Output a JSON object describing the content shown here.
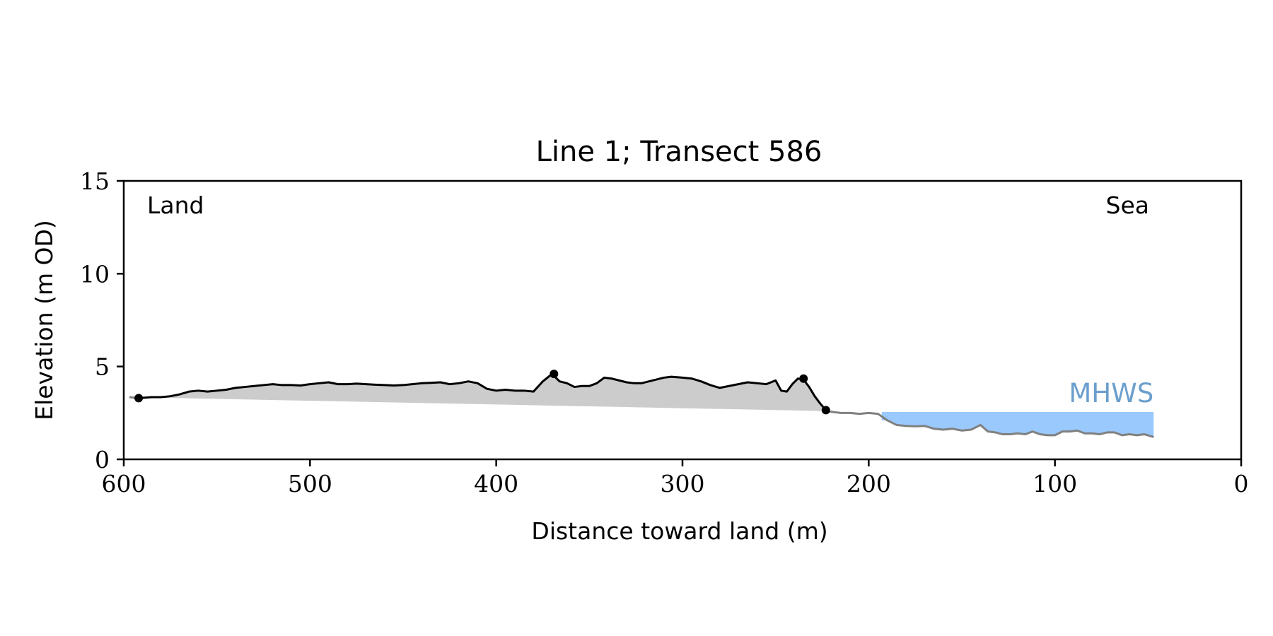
{
  "chart_data": {
    "type": "area",
    "title": "Line 1; Transect 586",
    "xlabel": "Distance toward land (m)",
    "ylabel": "Elevation (m OD)",
    "xlim": [
      600,
      0
    ],
    "ylim": [
      0,
      15
    ],
    "x_ticks": [
      600,
      500,
      400,
      300,
      200,
      100,
      0
    ],
    "y_ticks": [
      0,
      5,
      10,
      15
    ],
    "grid": false,
    "annotations": [
      {
        "text": "Land",
        "position": "top-left"
      },
      {
        "text": "Sea",
        "position": "top-right"
      }
    ],
    "mhws": {
      "label": "MHWS",
      "level": 2.55,
      "x_start": 193,
      "x_end": 47,
      "color": "#99c9fd",
      "label_color": "#6b9fcd"
    },
    "baseline": {
      "x": [
        597,
        223
      ],
      "y": [
        3.35,
        2.6
      ]
    },
    "land_profile": {
      "color": "#000000",
      "fill_color": "#cccccc",
      "x": [
        592,
        585,
        580,
        575,
        570,
        565,
        560,
        555,
        550,
        545,
        540,
        535,
        530,
        525,
        520,
        515,
        510,
        505,
        500,
        495,
        490,
        485,
        480,
        475,
        470,
        465,
        460,
        455,
        450,
        445,
        440,
        435,
        430,
        425,
        420,
        415,
        410,
        405,
        400,
        395,
        390,
        385,
        380,
        375,
        370,
        366,
        362,
        358,
        354,
        350,
        346,
        342,
        338,
        334,
        330,
        326,
        322,
        318,
        314,
        310,
        306,
        300,
        295,
        290,
        285,
        280,
        275,
        270,
        265,
        260,
        255,
        250,
        247,
        244,
        241,
        238,
        235,
        232,
        229,
        226,
        223
      ],
      "y": [
        3.3,
        3.35,
        3.35,
        3.4,
        3.5,
        3.65,
        3.7,
        3.65,
        3.7,
        3.75,
        3.85,
        3.9,
        3.95,
        4.0,
        4.05,
        4.0,
        4.0,
        3.98,
        4.05,
        4.1,
        4.15,
        4.05,
        4.05,
        4.08,
        4.05,
        4.02,
        4.0,
        3.98,
        4.0,
        4.05,
        4.1,
        4.12,
        4.15,
        4.05,
        4.1,
        4.2,
        4.1,
        3.8,
        3.7,
        3.75,
        3.7,
        3.7,
        3.65,
        4.2,
        4.6,
        4.2,
        4.1,
        3.9,
        3.95,
        3.95,
        4.1,
        4.4,
        4.35,
        4.25,
        4.15,
        4.1,
        4.1,
        4.2,
        4.3,
        4.4,
        4.45,
        4.4,
        4.35,
        4.2,
        4.0,
        3.85,
        3.95,
        4.05,
        4.15,
        4.1,
        4.05,
        4.25,
        3.7,
        3.65,
        4.05,
        4.35,
        4.3,
        3.9,
        3.4,
        3.0,
        2.65
      ],
      "markers": [
        {
          "x": 592,
          "y": 3.3
        },
        {
          "x": 369,
          "y": 4.6
        },
        {
          "x": 235,
          "y": 4.35
        },
        {
          "x": 223,
          "y": 2.65
        }
      ]
    },
    "sea_profile": {
      "color": "#808080",
      "x": [
        223,
        215,
        210,
        205,
        200,
        195,
        190,
        185,
        180,
        175,
        170,
        165,
        160,
        155,
        150,
        145,
        140,
        136,
        132,
        128,
        124,
        120,
        116,
        112,
        108,
        104,
        100,
        96,
        92,
        88,
        84,
        80,
        76,
        72,
        68,
        64,
        60,
        56,
        52,
        47
      ],
      "y": [
        2.6,
        2.5,
        2.5,
        2.45,
        2.5,
        2.45,
        2.1,
        1.85,
        1.8,
        1.78,
        1.8,
        1.65,
        1.6,
        1.65,
        1.55,
        1.6,
        1.85,
        1.5,
        1.45,
        1.35,
        1.35,
        1.4,
        1.35,
        1.5,
        1.35,
        1.3,
        1.3,
        1.5,
        1.5,
        1.55,
        1.4,
        1.4,
        1.35,
        1.45,
        1.45,
        1.3,
        1.35,
        1.3,
        1.35,
        1.2
      ]
    }
  }
}
